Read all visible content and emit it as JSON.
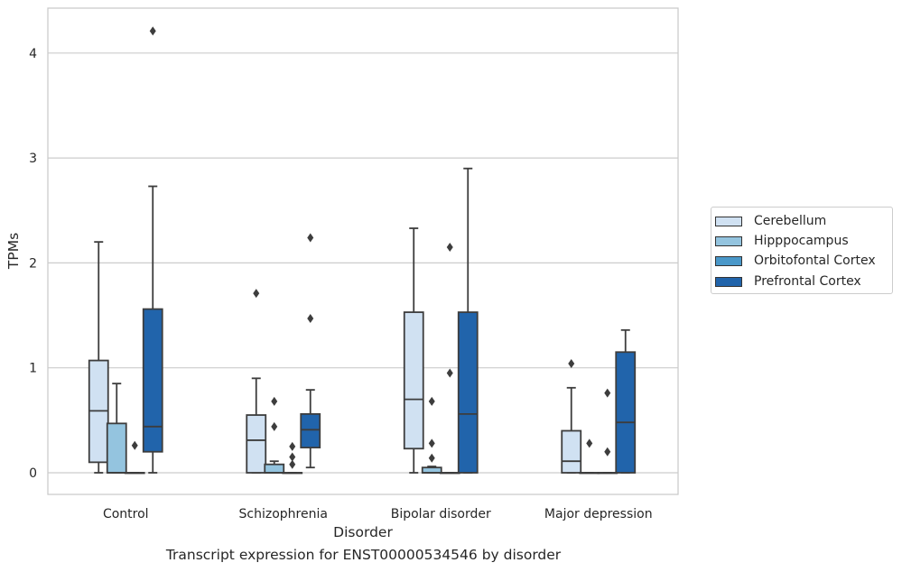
{
  "chart_data": {
    "type": "box",
    "title": "",
    "caption": "Transcript expression for ENST00000534546 by disorder",
    "xlabel": "Disorder",
    "ylabel": "TPMs",
    "ylim": [
      -0.2,
      4.3
    ],
    "yticks": [
      0,
      1,
      2,
      3,
      4
    ],
    "grid": "horizontal",
    "legend_position": "right",
    "categories": [
      "Control",
      "Schizophrenia",
      "Bipolar disorder",
      "Major depression"
    ],
    "series": [
      {
        "name": "Cerebellum",
        "color": "#d0e1f2",
        "boxes": [
          {
            "whislo": 0,
            "q1": 0.1,
            "med": 0.59,
            "q3": 1.07,
            "whishi": 2.2,
            "fliers": []
          },
          {
            "whislo": 0,
            "q1": 0,
            "med": 0.31,
            "q3": 0.55,
            "whishi": 0.9,
            "fliers": [
              1.71
            ]
          },
          {
            "whislo": 0,
            "q1": 0.23,
            "med": 0.7,
            "q3": 1.53,
            "whishi": 2.33,
            "fliers": []
          },
          {
            "whislo": 0,
            "q1": 0,
            "med": 0.11,
            "q3": 0.4,
            "whishi": 0.81,
            "fliers": [
              1.04
            ]
          }
        ]
      },
      {
        "name": "Hipppocampus",
        "color": "#94c4df",
        "boxes": [
          {
            "whislo": 0,
            "q1": 0,
            "med": 0,
            "q3": 0.47,
            "whishi": 0.85,
            "fliers": []
          },
          {
            "whislo": 0,
            "q1": 0,
            "med": 0,
            "q3": 0.08,
            "whishi": 0.11,
            "fliers": [
              0.68,
              0.44
            ]
          },
          {
            "whislo": 0,
            "q1": 0,
            "med": 0,
            "q3": 0.05,
            "whishi": 0.06,
            "fliers": [
              0.68,
              0.28,
              0.14
            ]
          },
          {
            "whislo": 0,
            "q1": 0,
            "med": 0,
            "q3": 0,
            "whishi": 0,
            "fliers": [
              0.28
            ]
          }
        ]
      },
      {
        "name": "Orbitofontal Cortex",
        "color": "#4a98c9",
        "boxes": [
          {
            "whislo": 0,
            "q1": 0,
            "med": 0,
            "q3": 0,
            "whishi": 0,
            "fliers": [
              0.26
            ]
          },
          {
            "whislo": 0,
            "q1": 0,
            "med": 0,
            "q3": 0,
            "whishi": 0,
            "fliers": [
              0.25,
              0.15,
              0.08
            ]
          },
          {
            "whislo": 0,
            "q1": 0,
            "med": 0,
            "q3": 0,
            "whishi": 0,
            "fliers": [
              2.15,
              0.95
            ]
          },
          {
            "whislo": 0,
            "q1": 0,
            "med": 0,
            "q3": 0,
            "whishi": 0,
            "fliers": [
              0.76,
              0.2
            ]
          }
        ]
      },
      {
        "name": "Prefrontal Cortex",
        "color": "#2164ab",
        "boxes": [
          {
            "whislo": 0,
            "q1": 0.2,
            "med": 0.44,
            "q3": 1.56,
            "whishi": 2.73,
            "fliers": [
              4.21
            ]
          },
          {
            "whislo": 0.05,
            "q1": 0.24,
            "med": 0.41,
            "q3": 0.56,
            "whishi": 0.79,
            "fliers": [
              2.24,
              1.47
            ]
          },
          {
            "whislo": 0,
            "q1": 0,
            "med": 0.56,
            "q3": 1.53,
            "whishi": 2.9,
            "fliers": []
          },
          {
            "whislo": 0,
            "q1": 0,
            "med": 0.48,
            "q3": 1.15,
            "whishi": 1.36,
            "fliers": []
          }
        ]
      }
    ]
  }
}
